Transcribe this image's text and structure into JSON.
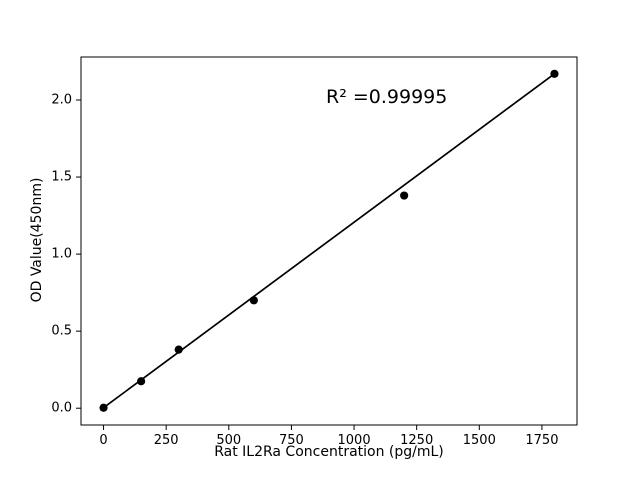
{
  "figure": {
    "background": "#ffffff"
  },
  "colors": {
    "axis": "#000000",
    "text": "#000000",
    "marker": "#000000",
    "line": "#000000",
    "background": "#ffffff"
  },
  "chart_data": {
    "type": "scatter",
    "title": "",
    "xlabel": "Rat IL2Ra Concentration (pg/mL)",
    "ylabel": "OD Value(450nm)",
    "annotation": {
      "text": "R² =0.99995"
    },
    "xlim": [
      -90,
      1890
    ],
    "ylim": [
      -0.109,
      2.279
    ],
    "x_ticks": [
      0,
      250,
      500,
      750,
      1000,
      1250,
      1500,
      1750
    ],
    "x_tick_labels": [
      "0",
      "250",
      "500",
      "750",
      "1000",
      "1250",
      "1500",
      "1750"
    ],
    "y_ticks": [
      0.0,
      0.5,
      1.0,
      1.5,
      2.0
    ],
    "y_tick_labels": [
      "0.0",
      "0.5",
      "1.0",
      "1.5",
      "2.0"
    ],
    "grid": false,
    "legend": "none",
    "series": [
      {
        "name": "linear-fit",
        "type": "line",
        "color": "#000000",
        "x": [
          0,
          1800
        ],
        "y": [
          0.003,
          2.17
        ]
      },
      {
        "name": "standard-points",
        "type": "scatter",
        "marker": "circle",
        "color": "#000000",
        "x": [
          0,
          150,
          300,
          600,
          1200,
          1800
        ],
        "y": [
          0.003,
          0.175,
          0.38,
          0.7,
          1.38,
          2.17
        ]
      }
    ]
  }
}
